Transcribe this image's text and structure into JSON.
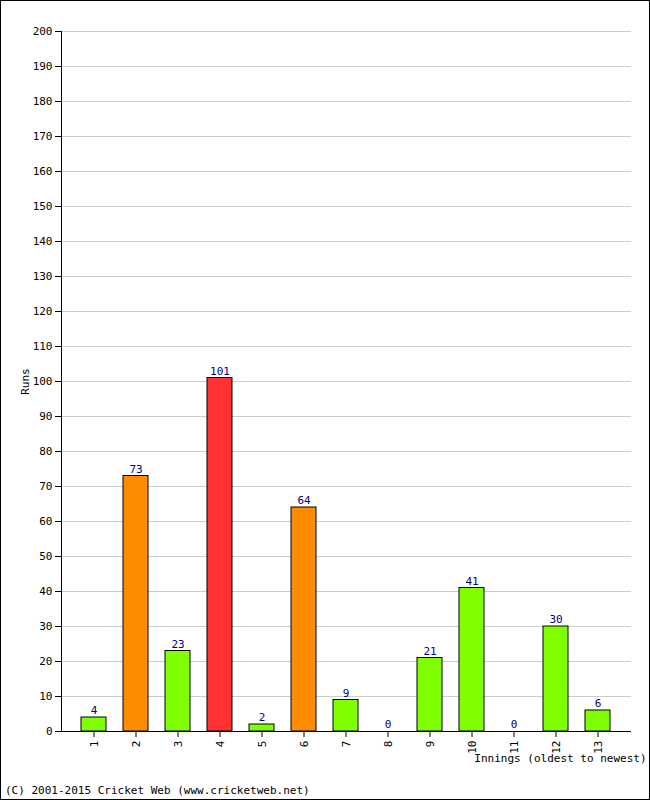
{
  "chart_data": {
    "type": "bar",
    "caption": "(C) 2001-2015 Cricket Web (www.cricketweb.net)",
    "x_label": "Innings (oldest to newest)",
    "y_label": "Runs",
    "categories": [
      "1",
      "2",
      "3",
      "4",
      "5",
      "6",
      "7",
      "8",
      "9",
      "10",
      "11",
      "12",
      "13"
    ],
    "values": [
      4,
      73,
      23,
      101,
      2,
      64,
      9,
      0,
      21,
      41,
      0,
      30,
      6
    ],
    "colors": [
      "#80ff00",
      "#ff8c00",
      "#80ff00",
      "#ff3333",
      "#80ff00",
      "#ff8c00",
      "#80ff00",
      "#80ff00",
      "#80ff00",
      "#80ff00",
      "#80ff00",
      "#80ff00",
      "#80ff00"
    ],
    "ylim": [
      0,
      200
    ],
    "yticks": [
      0,
      10,
      20,
      30,
      40,
      50,
      60,
      70,
      80,
      90,
      100,
      110,
      120,
      130,
      140,
      150,
      160,
      170,
      180,
      190,
      200
    ],
    "grid": true,
    "data_labels": true
  }
}
